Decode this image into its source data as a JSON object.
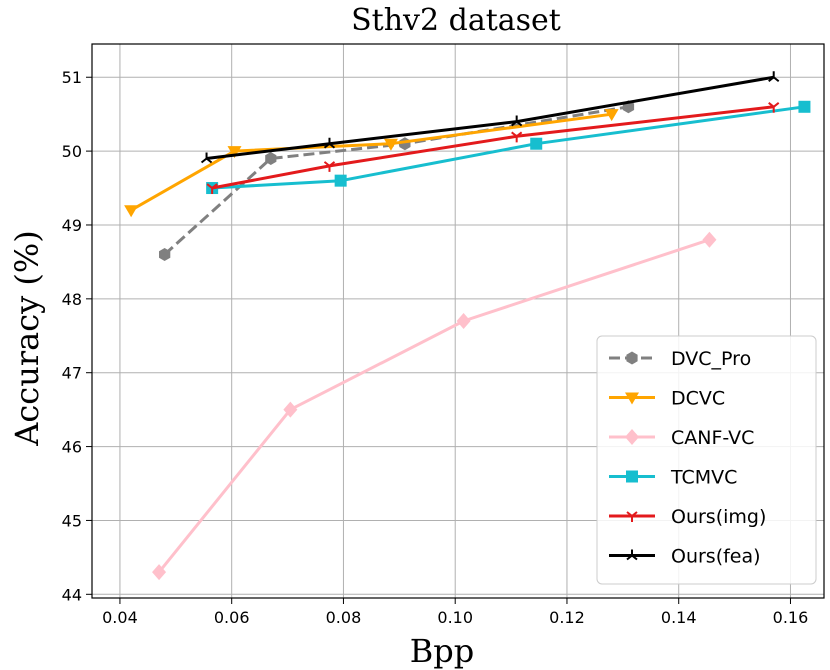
{
  "chart_data": {
    "type": "line",
    "title": "Sthv2 dataset",
    "xlabel": "Bpp",
    "ylabel": "Accuracy (%)",
    "xlim": [
      0.035,
      0.166
    ],
    "ylim": [
      43.95,
      51.45
    ],
    "x_ticks": [
      "0.04",
      "0.06",
      "0.08",
      "0.10",
      "0.12",
      "0.14",
      "0.16"
    ],
    "y_ticks": [
      "44",
      "45",
      "46",
      "47",
      "48",
      "49",
      "50",
      "51"
    ],
    "grid": true,
    "legend_position": "lower-right",
    "series": [
      {
        "name": "DVC_Pro",
        "color": "#808080",
        "linestyle": "dashed",
        "marker": "hexagon",
        "points": [
          [
            0.048,
            48.6
          ],
          [
            0.067,
            49.9
          ],
          [
            0.091,
            50.1
          ],
          [
            0.131,
            50.6
          ]
        ]
      },
      {
        "name": "DCVC",
        "color": "#ffa500",
        "linestyle": "solid",
        "marker": "triangle-down",
        "points": [
          [
            0.042,
            49.2
          ],
          [
            0.0605,
            50.0
          ],
          [
            0.0885,
            50.1
          ],
          [
            0.128,
            50.5
          ]
        ]
      },
      {
        "name": "CANF-VC",
        "color": "#ffc0cb",
        "linestyle": "solid",
        "marker": "diamond",
        "points": [
          [
            0.047,
            44.3
          ],
          [
            0.0705,
            46.5
          ],
          [
            0.1015,
            47.7
          ],
          [
            0.1455,
            48.8
          ]
        ]
      },
      {
        "name": "TCMVC",
        "color": "#17becf",
        "linestyle": "solid",
        "marker": "square",
        "points": [
          [
            0.0565,
            49.5
          ],
          [
            0.0795,
            49.6
          ],
          [
            0.1145,
            50.1
          ],
          [
            0.1625,
            50.6
          ]
        ]
      },
      {
        "name": "Ours(img)",
        "color": "#e31a1c",
        "linestyle": "solid",
        "marker": "tri-down",
        "points": [
          [
            0.0565,
            49.5
          ],
          [
            0.0775,
            49.8
          ],
          [
            0.111,
            50.2
          ],
          [
            0.157,
            50.6
          ]
        ]
      },
      {
        "name": "Ours(fea)",
        "color": "#000000",
        "linestyle": "solid",
        "marker": "tri-up",
        "points": [
          [
            0.0555,
            49.9
          ],
          [
            0.0775,
            50.1
          ],
          [
            0.111,
            50.4
          ],
          [
            0.157,
            51.0
          ]
        ]
      }
    ]
  }
}
